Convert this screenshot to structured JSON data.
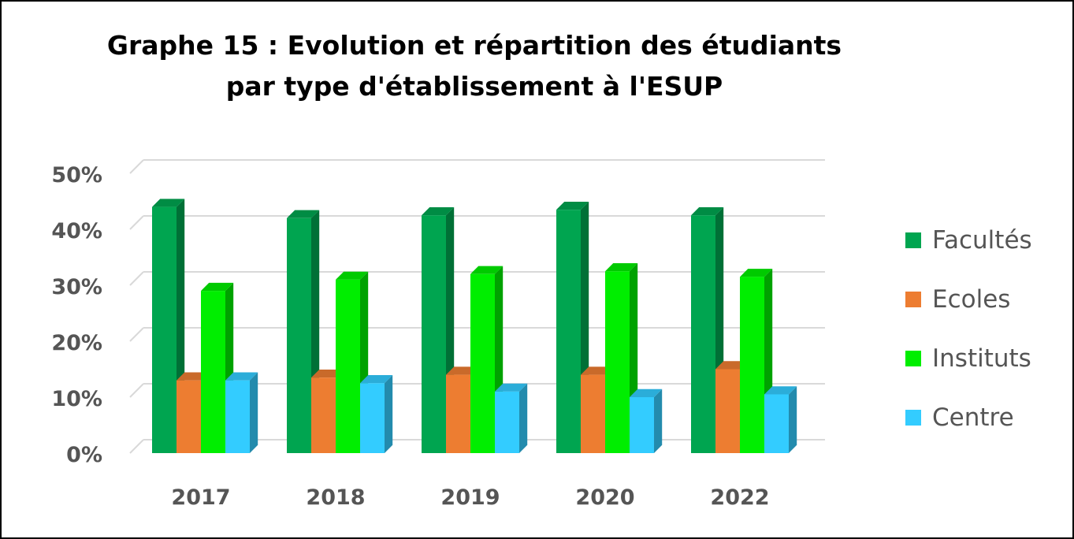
{
  "chart_data": {
    "type": "bar",
    "title": "Graphe 15 : Evolution et répartition des étudiants par type d'établissement à l'ESUP",
    "categories": [
      "2017",
      "2018",
      "2019",
      "2020",
      "2022"
    ],
    "series": [
      {
        "name": "Facultés",
        "values": [
          44,
          42,
          42.5,
          43.5,
          42.5
        ],
        "color": "#00a550"
      },
      {
        "name": "Ecoles",
        "values": [
          13,
          13.5,
          14,
          14,
          15
        ],
        "color": "#ed7d31"
      },
      {
        "name": "Instituts",
        "values": [
          29,
          31,
          32,
          32.5,
          31.5
        ],
        "color": "#00ee00"
      },
      {
        "name": "Centre",
        "values": [
          13,
          12.5,
          11,
          10,
          10.5
        ],
        "color": "#33ccff"
      }
    ],
    "y_tick_labels": [
      "0%",
      "10%",
      "20%",
      "30%",
      "40%",
      "50%"
    ],
    "ylim": [
      0,
      50
    ],
    "y_unit": "%",
    "grid": true,
    "legend_position": "right",
    "xlabel": "",
    "ylabel": ""
  }
}
